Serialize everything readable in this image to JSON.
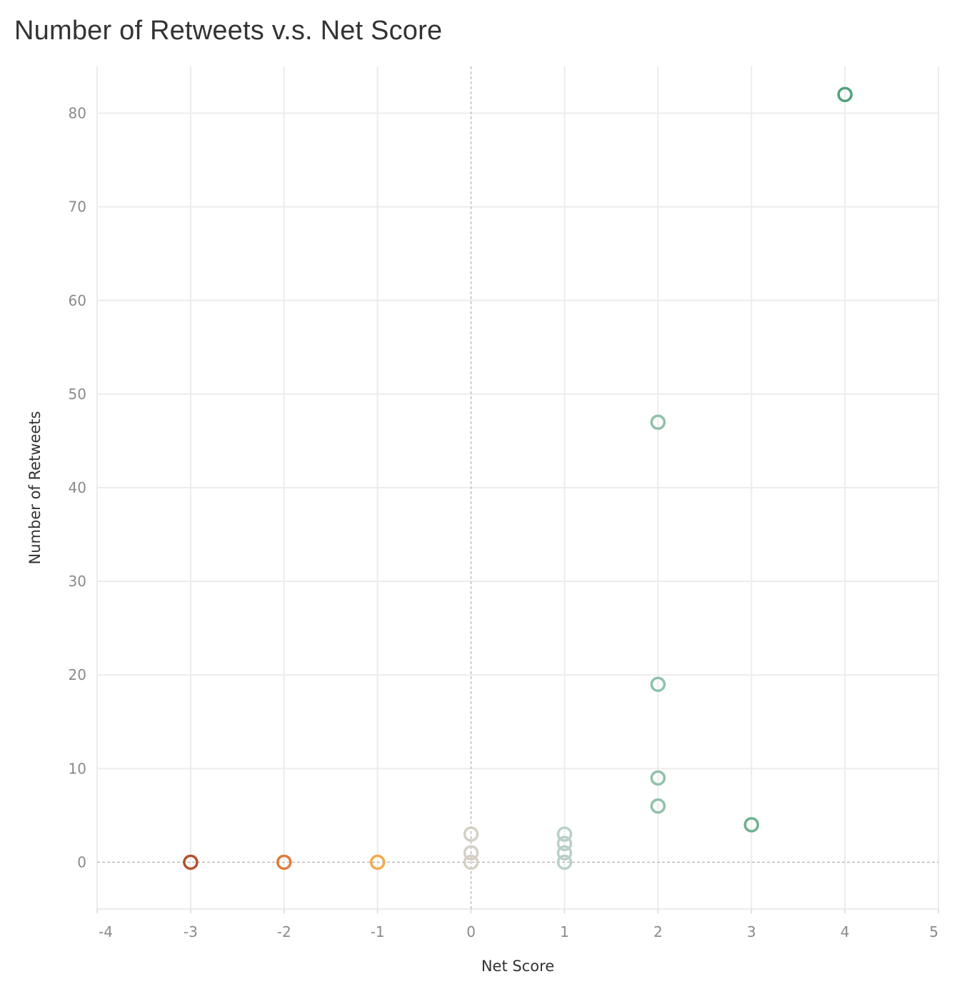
{
  "chart_data": {
    "type": "scatter",
    "title": "Number of Retweets v.s. Net Score",
    "xlabel": "Net Score",
    "ylabel": "Number of Retweets",
    "xlim": [
      -4,
      5
    ],
    "ylim": [
      -5,
      85
    ],
    "x_ticks": [
      "-4",
      "-3",
      "-2",
      "-1",
      "0",
      "1",
      "2",
      "3",
      "4",
      "5"
    ],
    "y_ticks": [
      "0",
      "10",
      "20",
      "30",
      "40",
      "50",
      "60",
      "70",
      "80"
    ],
    "grid": true,
    "marker": "hollow-circle",
    "colors": {
      "-3": "#b5502c",
      "-2": "#e07b39",
      "-1": "#f2a94e",
      "0": "#d4d0c6",
      "1": "#b9d0c6",
      "2": "#8fc1aa",
      "3": "#6db191",
      "4": "#4fa27c"
    },
    "points": [
      {
        "x": -3,
        "y": 0
      },
      {
        "x": -2,
        "y": 0
      },
      {
        "x": -1,
        "y": 0
      },
      {
        "x": 0,
        "y": 0
      },
      {
        "x": 0,
        "y": 1
      },
      {
        "x": 0,
        "y": 3
      },
      {
        "x": 1,
        "y": 0
      },
      {
        "x": 1,
        "y": 1
      },
      {
        "x": 1,
        "y": 2
      },
      {
        "x": 1,
        "y": 3
      },
      {
        "x": 2,
        "y": 6
      },
      {
        "x": 2,
        "y": 9
      },
      {
        "x": 2,
        "y": 19
      },
      {
        "x": 2,
        "y": 47
      },
      {
        "x": 3,
        "y": 4
      },
      {
        "x": 4,
        "y": 82
      }
    ]
  }
}
